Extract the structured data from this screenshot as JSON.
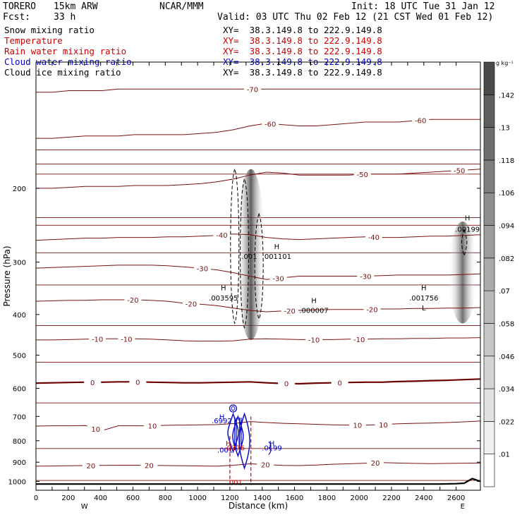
{
  "header": {
    "model": "TORERO",
    "resolution": "15km ARW",
    "org": "NCAR/MMM",
    "init": "Init: 18 UTC Tue 31 Jan 12",
    "fcst_label": "Fcst:",
    "fcst_value": "33 h",
    "valid": "Valid: 03 UTC Thu 02 Feb 12 (21 CST Wed 01 Feb 12)"
  },
  "legend": [
    {
      "label": "Snow mixing ratio",
      "color": "#000000",
      "xy": "XY=  38.3.149.8 to 222.9.149.8",
      "xy_color": "#000000"
    },
    {
      "label": "Temperature",
      "color": "#cc0000",
      "xy": "XY=  38.3.149.8 to 222.9.149.8",
      "xy_color": "#cc0000"
    },
    {
      "label": "Rain water mixing ratio",
      "color": "#cc0000",
      "xy": "XY=  38.3.149.8 to 222.9.149.8",
      "xy_color": "#cc0000"
    },
    {
      "label": "Cloud water mixing ratio",
      "color": "#0000cc",
      "xy": "XY=  38.3.149.8 to 222.9.149.8",
      "xy_color": "#0000cc"
    },
    {
      "label": "Cloud ice mixing ratio",
      "color": "#000000",
      "xy": "XY=  38.3.149.8 to 222.9.149.8",
      "xy_color": "#000000"
    }
  ],
  "chart_data": {
    "type": "cross-section",
    "xlabel": "Distance (km)",
    "ylabel": "Pressure (hPa)",
    "xlim": [
      0,
      2750
    ],
    "ylim": [
      1050,
      100
    ],
    "y_scale": "log",
    "x_ticks": [
      0,
      100,
      200,
      300,
      400,
      500,
      600,
      700,
      800,
      900,
      1000,
      1100,
      1200,
      1300,
      1400,
      1500,
      1600,
      1700,
      1800,
      1900,
      2000,
      2100,
      2200,
      2300,
      2400,
      2500,
      2600
    ],
    "x_tick_labels": [
      "0",
      "200",
      "400",
      "600",
      "800",
      "1000",
      "1200",
      "1400",
      "1600",
      "1800",
      "2000",
      "2200",
      "2400",
      "2600"
    ],
    "y_tick_labels": [
      200,
      300,
      400,
      500,
      600,
      700,
      800,
      900,
      1000
    ],
    "x_end_labels": {
      "west": "W",
      "east": "E"
    },
    "colorbar": {
      "unit": "g kg⁻¹",
      "ticks": [
        ".01",
        ".022",
        ".034",
        ".046",
        ".058",
        ".07",
        ".082",
        ".094",
        ".106",
        ".118",
        ".13",
        ".142"
      ],
      "colors": [
        "#ffffff",
        "#f0f0f0",
        "#e2e2e2",
        "#d4d4d4",
        "#c6c6c6",
        "#b8b8b8",
        "#aaaaaa",
        "#9c9c9c",
        "#8e8e8e",
        "#7e7e7e",
        "#6e6e6e",
        "#5e5e5e",
        "#4a4a4a"
      ]
    },
    "temperature_contours": {
      "color": "#7a1010",
      "zero_line_color": "#6a0000",
      "levels": [
        {
          "t": -70,
          "p": [
            118,
            118,
            117,
            117,
            117,
            116,
            116,
            116,
            116,
            116,
            116,
            116,
            116,
            116,
            116,
            116,
            116,
            116,
            116,
            116,
            116,
            116,
            116,
            116,
            116,
            116,
            116,
            116
          ],
          "labels": [
            {
              "x": 1340,
              "text": "-70"
            }
          ]
        },
        {
          "t": -60,
          "p": [
            152,
            152,
            151,
            150,
            150,
            150,
            149,
            149,
            149,
            149,
            148,
            147,
            145,
            142,
            140,
            141,
            142,
            142,
            141,
            140,
            139,
            139,
            139,
            138,
            137,
            137,
            137,
            137
          ],
          "labels": [
            {
              "x": 1450,
              "text": "-60"
            },
            {
              "x": 2380,
              "text": "-60"
            }
          ]
        },
        {
          "t": -50,
          "p": [
            200,
            200,
            199,
            198,
            198,
            198,
            197,
            197,
            197,
            196,
            195,
            193,
            190,
            186,
            183,
            184,
            186,
            186,
            186,
            186,
            185,
            185,
            185,
            184,
            183,
            182,
            181,
            180
          ],
          "labels": [
            {
              "x": 2020,
              "text": "-50"
            },
            {
              "x": 2620,
              "text": "-50"
            }
          ]
        },
        {
          "t": -40,
          "p": [
            266,
            265,
            264,
            263,
            263,
            262,
            262,
            262,
            261,
            261,
            260,
            259,
            257,
            258,
            262,
            264,
            265,
            264,
            263,
            262,
            261,
            262,
            262,
            261,
            260,
            260,
            259,
            258
          ],
          "labels": [
            {
              "x": 1150,
              "text": "-40"
            },
            {
              "x": 2090,
              "text": "-40"
            }
          ]
        },
        {
          "t": -30,
          "p": [
            310,
            309,
            308,
            307,
            306,
            305,
            305,
            305,
            306,
            308,
            310,
            313,
            318,
            324,
            330,
            327,
            324,
            324,
            324,
            324,
            324,
            323,
            322,
            322,
            322,
            322,
            321,
            320
          ],
          "labels": [
            {
              "x": 1030,
              "text": "-30"
            },
            {
              "x": 1500,
              "text": "-30"
            },
            {
              "x": 2040,
              "text": "-30"
            }
          ]
        },
        {
          "t": -20,
          "p": [
            372,
            371,
            370,
            370,
            369,
            369,
            369,
            370,
            372,
            376,
            378,
            381,
            386,
            391,
            394,
            392,
            391,
            390,
            389,
            389,
            389,
            388,
            388,
            387,
            387,
            386,
            386,
            385
          ],
          "labels": [
            {
              "x": 600,
              "text": "-20"
            },
            {
              "x": 960,
              "text": "-20"
            },
            {
              "x": 1570,
              "text": "-20"
            },
            {
              "x": 2080,
              "text": "-20"
            }
          ]
        },
        {
          "t": -10,
          "p": [
            460,
            460,
            459,
            458,
            457,
            457,
            457,
            458,
            460,
            462,
            463,
            463,
            462,
            458,
            457,
            458,
            459,
            459,
            459,
            458,
            458,
            457,
            457,
            456,
            456,
            455,
            455,
            454
          ],
          "labels": [
            {
              "x": 380,
              "text": "-10"
            },
            {
              "x": 560,
              "text": "-10"
            },
            {
              "x": 1720,
              "text": "-10"
            },
            {
              "x": 2000,
              "text": "-10"
            }
          ]
        },
        {
          "t": 0,
          "p": [
            583,
            582,
            581,
            580,
            580,
            579,
            579,
            580,
            581,
            582,
            582,
            581,
            580,
            579,
            582,
            584,
            585,
            583,
            582,
            581,
            580,
            580,
            578,
            577,
            575,
            574,
            572,
            570
          ],
          "labels": [
            {
              "x": 350,
              "text": "0"
            },
            {
              "x": 630,
              "text": "0"
            },
            {
              "x": 1550,
              "text": "0"
            },
            {
              "x": 1880,
              "text": "0"
            }
          ]
        },
        {
          "t": 10,
          "p": [
            738,
            737,
            737,
            736,
            757,
            737,
            737,
            737,
            735,
            734,
            733,
            732,
            728,
            720,
            724,
            727,
            729,
            731,
            733,
            734,
            734,
            732,
            729,
            727,
            726,
            724,
            721,
            718
          ],
          "labels": [
            {
              "x": 370,
              "text": "10"
            },
            {
              "x": 720,
              "text": "10"
            },
            {
              "x": 1990,
              "text": "10"
            },
            {
              "x": 2150,
              "text": "10"
            }
          ]
        },
        {
          "t": 20,
          "p": [
            920,
            919,
            918,
            917,
            916,
            915,
            915,
            916,
            917,
            918,
            919,
            920,
            915,
            908,
            912,
            916,
            917,
            914,
            910,
            908,
            905,
            902,
            904,
            906,
            907,
            906,
            905,
            904
          ],
          "labels": [
            {
              "x": 340,
              "text": "20"
            },
            {
              "x": 700,
              "text": "20"
            },
            {
              "x": 1420,
              "text": "20"
            },
            {
              "x": 2100,
              "text": "20"
            }
          ]
        }
      ],
      "extra_lines_hpa": [
        162,
        175,
        185,
        235,
        245,
        285,
        340,
        425,
        520,
        650,
        835,
        995
      ]
    },
    "snow_shading": [
      {
        "x": 1330,
        "p_top": 180,
        "p_bottom": 460,
        "intensity": 0.8
      },
      {
        "x": 2640,
        "p_top": 240,
        "p_bottom": 420,
        "intensity": 0.7
      }
    ],
    "cloud_ice_contours": [
      {
        "x": 1230,
        "p_top": 180,
        "p_bottom": 420
      },
      {
        "x": 1290,
        "p_top": 190,
        "p_bottom": 430
      },
      {
        "x": 1380,
        "p_top": 230,
        "p_bottom": 410
      },
      {
        "x": 2650,
        "p_top": 250,
        "p_bottom": 290
      }
    ],
    "cloud_water_contours": [
      {
        "x": 1220,
        "p_top": 690,
        "p_bottom": 850
      },
      {
        "x": 1250,
        "p_top": 700,
        "p_bottom": 870
      },
      {
        "x": 1290,
        "p_top": 690,
        "p_bottom": 930
      }
    ],
    "cloud_water_circle": {
      "x": 1220,
      "p": 670
    },
    "rain_region": {
      "x_left": 1200,
      "x_right": 1330,
      "p_top": 700,
      "p_bottom": 1020
    },
    "max_labels": [
      {
        "x": 1160,
        "p": 365,
        "text": ".003595",
        "color": "#000000"
      },
      {
        "x": 1160,
        "p": 345,
        "text": "H",
        "color": "#000000"
      },
      {
        "x": 1320,
        "p": 290,
        "text": ".001",
        "color": "#000000"
      },
      {
        "x": 1490,
        "p": 290,
        "text": ".001101",
        "color": "#000000"
      },
      {
        "x": 1490,
        "p": 275,
        "text": "H",
        "color": "#000000"
      },
      {
        "x": 1720,
        "p": 390,
        "text": ".000007",
        "color": "#000000"
      },
      {
        "x": 1720,
        "p": 370,
        "text": "H",
        "color": "#000000"
      },
      {
        "x": 2400,
        "p": 365,
        "text": ".001756",
        "color": "#000000"
      },
      {
        "x": 2400,
        "p": 345,
        "text": "H",
        "color": "#000000"
      },
      {
        "x": 2400,
        "p": 385,
        "text": "L",
        "color": "#000000"
      },
      {
        "x": 2670,
        "p": 250,
        "text": ".00199",
        "color": "#000000"
      },
      {
        "x": 2670,
        "p": 235,
        "text": "H",
        "color": "#000000"
      },
      {
        "x": 1150,
        "p": 715,
        "text": ".6992",
        "color": "#0000cc"
      },
      {
        "x": 1150,
        "p": 700,
        "text": "H",
        "color": "#0000cc"
      },
      {
        "x": 1170,
        "p": 840,
        "text": ".001",
        "color": "#0000cc"
      },
      {
        "x": 1230,
        "p": 830,
        "text": ".0376",
        "color": "#cc0000"
      },
      {
        "x": 1190,
        "p": 810,
        "text": "H",
        "color": "#cc0000"
      },
      {
        "x": 1460,
        "p": 830,
        "text": ".0199",
        "color": "#0000cc"
      },
      {
        "x": 1460,
        "p": 810,
        "text": "H",
        "color": "#0000cc"
      },
      {
        "x": 1230,
        "p": 1005,
        "text": ".001",
        "color": "#cc0000"
      }
    ],
    "terrain": {
      "x": [
        0,
        2500,
        2600,
        2650,
        2700,
        2750
      ],
      "p": [
        1015,
        1015,
        1013,
        1010,
        985,
        1000
      ]
    }
  }
}
